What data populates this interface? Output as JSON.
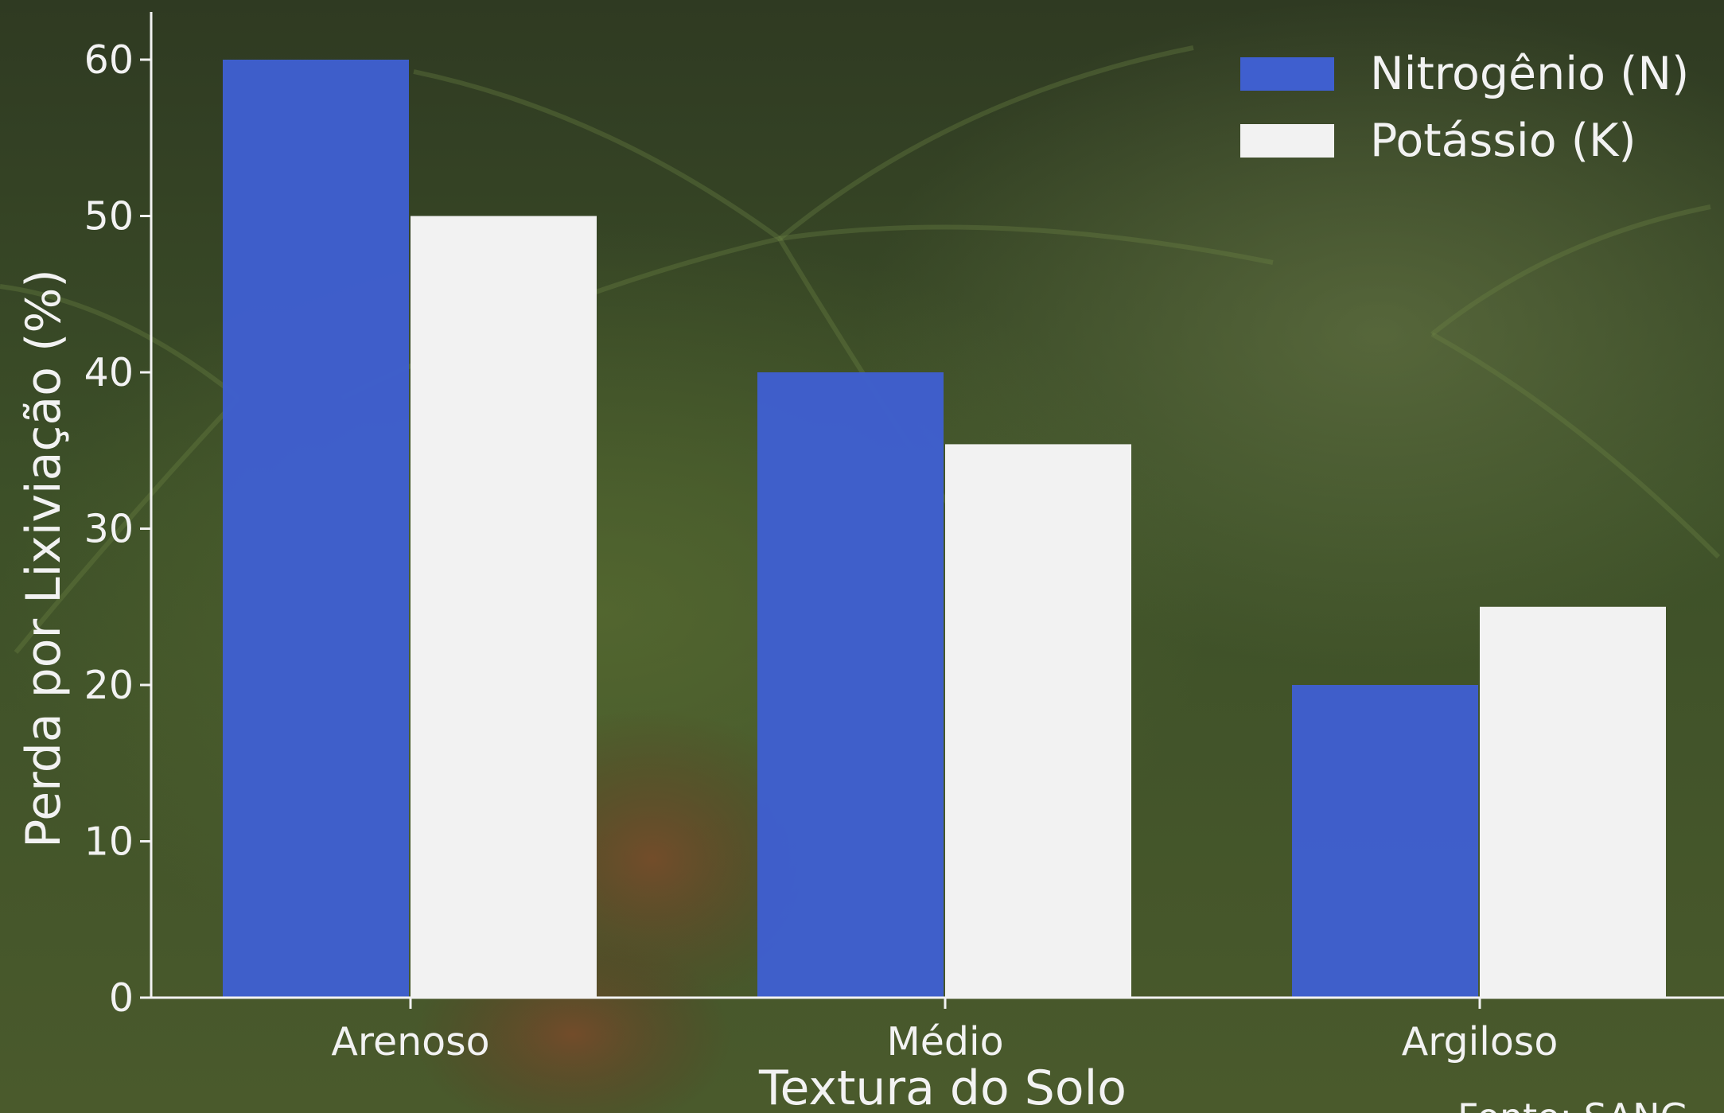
{
  "chart_data": {
    "type": "bar",
    "title": "",
    "xlabel": "Textura do Solo",
    "ylabel": "Perda por Lixiviação (%)",
    "categories": [
      "Arenoso",
      "Médio",
      "Argiloso"
    ],
    "series": [
      {
        "name": "Nitrogênio (N)",
        "values": [
          60,
          40,
          20
        ],
        "color": "#3f5fcf"
      },
      {
        "name": "Potássio (K)",
        "values": [
          50,
          35.4,
          25
        ],
        "color": "#f2f2f2"
      }
    ],
    "ylim": [
      0,
      60
    ],
    "yticks": [
      0,
      10,
      20,
      30,
      40,
      50,
      60
    ],
    "grid": false,
    "legend_position": "top-right",
    "source": "Fonte: SANG"
  }
}
